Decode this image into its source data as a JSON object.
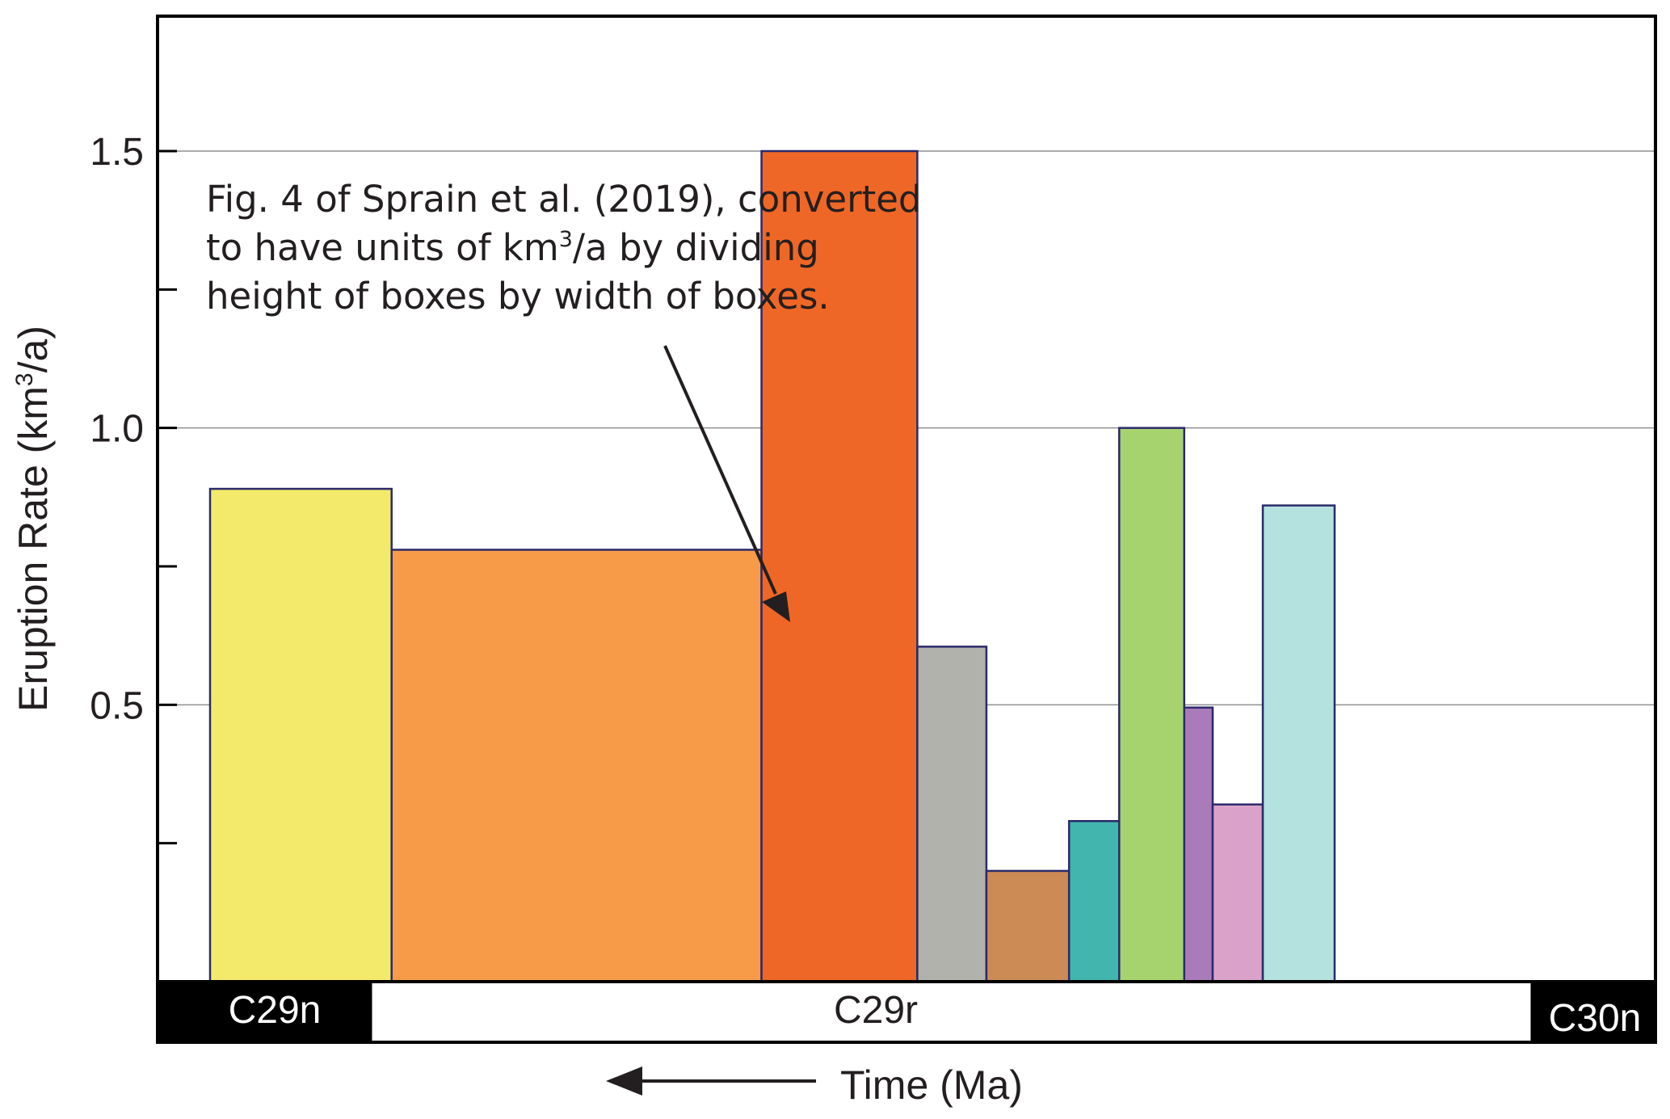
{
  "chart_data": {
    "type": "bar",
    "subtype": "variable-width",
    "title": "",
    "ylabel_main": "Eruption Rate (km",
    "ylabel_sup": "3",
    "ylabel_tail": "/a)",
    "xlabel": "Time (Ma)",
    "ylim": [
      0,
      1.75
    ],
    "yticks": [
      0.25,
      0.5,
      0.75,
      1.0,
      1.25,
      1.5
    ],
    "ytick_labels": {
      "0.5": "0.5",
      "1.0": "1.0",
      "1.5": "1.5"
    },
    "gridlines": [
      0.5,
      1.0,
      1.5
    ],
    "x_direction_note": "time increases to the left",
    "xlim": [
      0,
      100
    ],
    "bars": [
      {
        "start": 0.0,
        "end": 13.4,
        "value": 0.89,
        "color": "#f3ea6b"
      },
      {
        "start": 13.4,
        "end": 40.7,
        "value": 0.78,
        "color": "#f79b48"
      },
      {
        "start": 40.7,
        "end": 52.2,
        "value": 1.5,
        "color": "#ef6726"
      },
      {
        "start": 52.2,
        "end": 57.3,
        "value": 0.605,
        "color": "#b1b2ab"
      },
      {
        "start": 57.3,
        "end": 63.4,
        "value": 0.2,
        "color": "#cc8b54"
      },
      {
        "start": 63.4,
        "end": 67.1,
        "value": 0.29,
        "color": "#42b5ae"
      },
      {
        "start": 67.1,
        "end": 71.9,
        "value": 1.0,
        "color": "#a7d36e"
      },
      {
        "start": 71.9,
        "end": 74.0,
        "value": 0.495,
        "color": "#a97bb9"
      },
      {
        "start": 74.0,
        "end": 77.7,
        "value": 0.32,
        "color": "#dba2c9"
      },
      {
        "start": 77.7,
        "end": 83.0,
        "value": 0.86,
        "color": "#b4e2df"
      }
    ],
    "bar_outline_color": "#2b2a6b",
    "chrons": [
      {
        "label": "C29n",
        "fill": "#000000",
        "text_color": "#ffffff"
      },
      {
        "label": "C29r",
        "fill": "#ffffff",
        "text_color": "#231f20"
      },
      {
        "label": "C30n",
        "fill": "#000000",
        "text_color": "#ffffff"
      }
    ],
    "annotation": {
      "line1": "Fig. 4 of Sprain et al. (2019), converted",
      "line2_pre": "to have units of km",
      "line2_sup": "3",
      "line2_post": "/a by dividing",
      "line3": "height of boxes by width of boxes."
    }
  }
}
